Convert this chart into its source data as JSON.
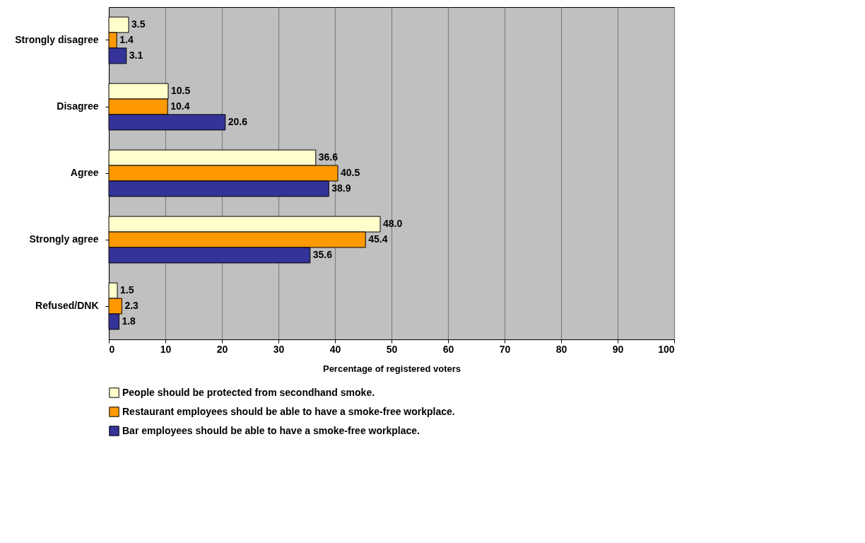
{
  "chart_data": {
    "type": "bar",
    "orientation": "horizontal",
    "xlabel": "Percentage of registered voters",
    "categories": [
      "Strongly disagree",
      "Disagree",
      "Agree",
      "Strongly agree",
      "Refused/DNK"
    ],
    "series": [
      {
        "name": "People should be protected from secondhand smoke.",
        "color": "#ffffcc",
        "values": [
          3.5,
          10.5,
          36.6,
          48.0,
          1.5
        ],
        "value_labels": [
          "3.5",
          "10.5",
          "36.6",
          "48.0",
          "1.5"
        ]
      },
      {
        "name": "Restaurant employees should be able to have a smoke-free workplace.",
        "color": "#ff9900",
        "values": [
          1.4,
          10.4,
          40.5,
          45.4,
          2.3
        ],
        "value_labels": [
          "1.4",
          "10.4",
          "40.5",
          "45.4",
          "2.3"
        ]
      },
      {
        "name": "Bar employees should be able to have a smoke-free workplace.",
        "color": "#333399",
        "values": [
          3.1,
          20.6,
          38.9,
          35.6,
          1.8
        ],
        "value_labels": [
          "3.1",
          "20.6",
          "38.9",
          "35.6",
          "1.8"
        ]
      }
    ],
    "xlim": [
      0,
      100
    ],
    "xticks": [
      0,
      10,
      20,
      30,
      40,
      50,
      60,
      70,
      80,
      90,
      100
    ],
    "grid": "x",
    "legend": "bottom"
  }
}
